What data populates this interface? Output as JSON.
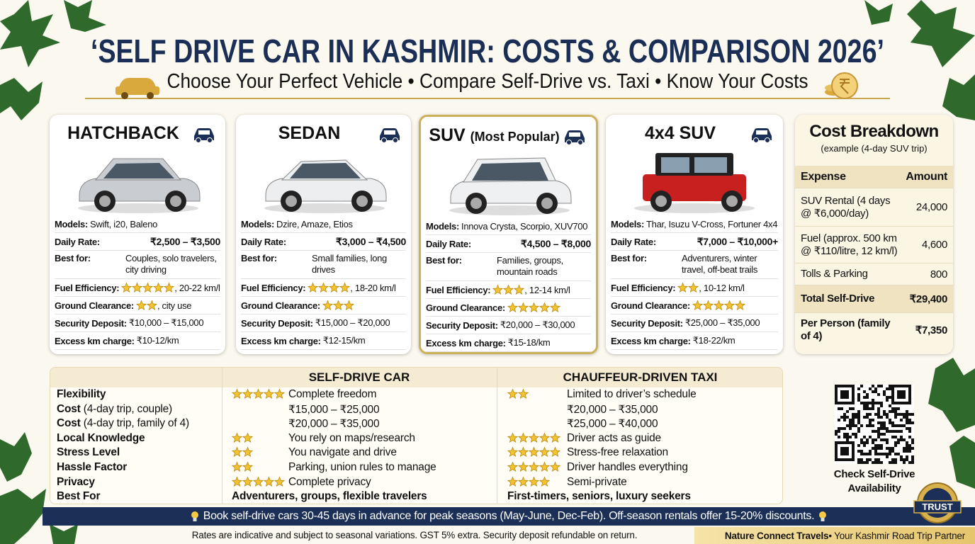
{
  "header": {
    "title": "‘SELF DRIVE CAR IN KASHMIR: COSTS & COMPARISON 2026’",
    "subtitle": "Choose Your Perfect Vehicle • Compare Self-Drive vs. Taxi • Know Your Costs"
  },
  "cards": [
    {
      "title": "HATCHBACK",
      "rows": [
        {
          "label": "Models:",
          "value": "Swift, i20, Baleno"
        },
        {
          "label": "Daily Rate:",
          "value": "₹2,500 – ₹3,500"
        },
        {
          "label": "Best for:",
          "value": "Couples, solo travelers, city driving"
        },
        {
          "label": "Fuel Efficiency:",
          "stars": 5,
          "value": ", 20-22 km/l"
        },
        {
          "label": "Ground Clearance:",
          "stars": 2,
          "value": ", city use"
        },
        {
          "label": "Security Deposit:",
          "value": "₹10,000 – ₹15,000"
        },
        {
          "label": "Excess km charge:",
          "value": "₹10-12/km"
        }
      ]
    },
    {
      "title": "SEDAN",
      "rows": [
        {
          "label": "Models:",
          "value": "Dzire, Amaze, Etios"
        },
        {
          "label": "Daily Rate:",
          "value": "₹3,000 – ₹4,500"
        },
        {
          "label": "Best for:",
          "value": "Small families, long drives"
        },
        {
          "label": "Fuel Efficiency:",
          "stars": 4,
          "value": ", 18-20 km/l"
        },
        {
          "label": "Ground Clearance:",
          "stars": 3
        },
        {
          "label": "Security Deposit:",
          "value": "₹15,000 – ₹20,000"
        },
        {
          "label": "Excess km charge:",
          "value": "₹12-15/km"
        }
      ]
    },
    {
      "title": "SUV",
      "tag": "(Most Popular)",
      "rows": [
        {
          "label": "Models:",
          "value": "Innova Crysta, Scorpio, XUV700"
        },
        {
          "label": "Daily Rate:",
          "value": "₹4,500 – ₹8,000"
        },
        {
          "label": "Best for:",
          "value": "Families, groups, mountain roads"
        },
        {
          "label": "Fuel Efficiency:",
          "stars": 3,
          "value": ", 12-14 km/l"
        },
        {
          "label": "Ground Clearance:",
          "stars": 5
        },
        {
          "label": "Security Deposit:",
          "value": "₹20,000 – ₹30,000"
        },
        {
          "label": "Excess km charge:",
          "value": "₹15-18/km"
        }
      ]
    },
    {
      "title": "4x4 SUV",
      "rows": [
        {
          "label": "Models:",
          "value": "Thar, Isuzu V-Cross, Fortuner 4x4"
        },
        {
          "label": "Daily Rate:",
          "value": "₹7,000 – ₹10,000+"
        },
        {
          "label": "Best for:",
          "value": "Adventurers, winter travel, off-beat trails"
        },
        {
          "label": "Fuel Efficiency:",
          "stars": 2,
          "value": ", 10-12 km/l"
        },
        {
          "label": "Ground Clearance:",
          "stars": 5
        },
        {
          "label": "Security Deposit:",
          "value": "₹25,000 – ₹35,000"
        },
        {
          "label": "Excess km charge:",
          "value": "₹18-22/km"
        }
      ]
    }
  ],
  "cost_breakdown": {
    "title": "Cost Breakdown",
    "subtitle": "(example (4-day SUV trip)",
    "headers": [
      "Expense",
      "Amount"
    ],
    "rows": [
      [
        "SUV Rental (4 days @ ₹6,000/day)",
        "24,000"
      ],
      [
        "Fuel (approx. 500 km @ ₹110/litre, 12 km/l)",
        "4,600"
      ],
      [
        "Tolls & Parking",
        "800"
      ],
      [
        "Total Self-Drive",
        "₹29,400"
      ],
      [
        "Per Person (family of 4)",
        "₹7,350"
      ]
    ]
  },
  "comparison": {
    "headers": [
      "SELF-DRIVE CAR",
      "CHAUFFEUR-DRIVEN TAXI"
    ],
    "rows": [
      {
        "label": "Flexibility",
        "self_stars": 5,
        "self": "Complete freedom",
        "taxi_stars": 2,
        "taxi": "Limited to driver’s schedule"
      },
      {
        "label": "Cost",
        "note": "(4-day trip, couple)",
        "self": "₹15,000 – ₹25,000",
        "taxi": "₹20,000 – ₹35,000"
      },
      {
        "label": "Cost",
        "note": "(4-day trip, family of 4)",
        "self": "₹20,000 – ₹35,000",
        "taxi": "₹25,000 – ₹40,000"
      },
      {
        "label": "Local Knowledge",
        "self_stars": 2,
        "self": "You rely on maps/research",
        "taxi_stars": 5,
        "taxi": "Driver acts as guide"
      },
      {
        "label": "Stress Level",
        "self_stars": 2,
        "self": "You navigate and drive",
        "taxi_stars": 5,
        "taxi": "Stress-free relaxation"
      },
      {
        "label": "Hassle Factor",
        "self_stars": 2,
        "self": "Parking, union rules to manage",
        "taxi_stars": 5,
        "taxi": "Driver handles everything"
      },
      {
        "label": "Privacy",
        "self_stars": 5,
        "self": "Complete privacy",
        "taxi_stars": 4,
        "taxi": "Semi-private"
      },
      {
        "label": "Best For",
        "self": "Adventurers, groups, flexible travelers",
        "taxi": "First-timers, seniors, luxury seekers"
      }
    ]
  },
  "qr": {
    "caption": "Check Self-Drive Availability"
  },
  "tip": "Book self-drive cars 30-45 days in advance for peak seasons (May-June, Dec-Feb). Off-season rentals offer 15-20% discounts.",
  "footer": {
    "note": "Rates are indicative and subject to seasonal variations. GST 5% extra. Security deposit refundable on return.",
    "brand": "Nature Connect Travels",
    "tagline": " • Your Kashmir Road Trip Partner"
  },
  "badge": "TRUST"
}
